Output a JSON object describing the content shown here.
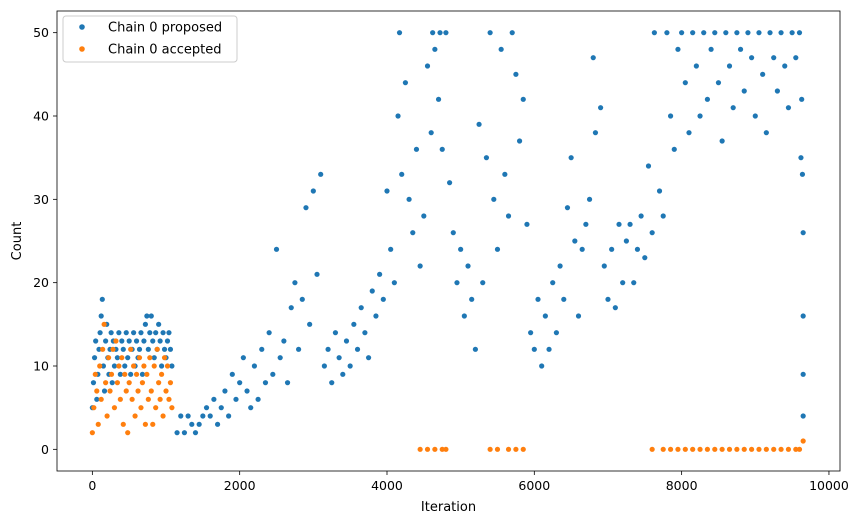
{
  "chart_data": {
    "type": "scatter",
    "title": "",
    "xlabel": "Iteration",
    "ylabel": "Count",
    "xlim": [
      -480,
      10150
    ],
    "ylim": [
      -2.6,
      52.6
    ],
    "xticks": [
      0,
      2000,
      4000,
      6000,
      8000,
      10000
    ],
    "yticks": [
      0,
      10,
      20,
      30,
      40,
      50
    ],
    "grid": false,
    "legend": {
      "placement": "top-left"
    },
    "series": [
      {
        "name": "Chain 0 proposed",
        "color": "#1f77b4",
        "points": [
          [
            0,
            5
          ],
          [
            15,
            8
          ],
          [
            30,
            11
          ],
          [
            45,
            13
          ],
          [
            60,
            6
          ],
          [
            75,
            9
          ],
          [
            90,
            12
          ],
          [
            105,
            14
          ],
          [
            120,
            16
          ],
          [
            135,
            18
          ],
          [
            150,
            10
          ],
          [
            165,
            7
          ],
          [
            180,
            13
          ],
          [
            195,
            15
          ],
          [
            210,
            11
          ],
          [
            225,
            9
          ],
          [
            240,
            12
          ],
          [
            255,
            14
          ],
          [
            270,
            8
          ],
          [
            285,
            13
          ],
          [
            300,
            10
          ],
          [
            320,
            12
          ],
          [
            340,
            11
          ],
          [
            360,
            14
          ],
          [
            380,
            9
          ],
          [
            400,
            13
          ],
          [
            420,
            12
          ],
          [
            440,
            10
          ],
          [
            460,
            14
          ],
          [
            480,
            11
          ],
          [
            500,
            13
          ],
          [
            520,
            9
          ],
          [
            540,
            12
          ],
          [
            560,
            14
          ],
          [
            580,
            10
          ],
          [
            600,
            13
          ],
          [
            620,
            11
          ],
          [
            640,
            12
          ],
          [
            660,
            14
          ],
          [
            680,
            9
          ],
          [
            700,
            13
          ],
          [
            720,
            15
          ],
          [
            740,
            16
          ],
          [
            760,
            12
          ],
          [
            780,
            14
          ],
          [
            800,
            16
          ],
          [
            820,
            13
          ],
          [
            840,
            11
          ],
          [
            860,
            14
          ],
          [
            880,
            12
          ],
          [
            900,
            15
          ],
          [
            920,
            13
          ],
          [
            940,
            10
          ],
          [
            960,
            14
          ],
          [
            980,
            12
          ],
          [
            1000,
            11
          ],
          [
            1020,
            13
          ],
          [
            1040,
            14
          ],
          [
            1060,
            12
          ],
          [
            1080,
            10
          ],
          [
            1150,
            2
          ],
          [
            1200,
            4
          ],
          [
            1250,
            2
          ],
          [
            1300,
            4
          ],
          [
            1350,
            3
          ],
          [
            1400,
            2
          ],
          [
            1450,
            3
          ],
          [
            1500,
            4
          ],
          [
            1550,
            5
          ],
          [
            1600,
            4
          ],
          [
            1650,
            6
          ],
          [
            1700,
            3
          ],
          [
            1750,
            5
          ],
          [
            1800,
            7
          ],
          [
            1850,
            4
          ],
          [
            1900,
            9
          ],
          [
            1950,
            6
          ],
          [
            2000,
            8
          ],
          [
            2050,
            11
          ],
          [
            2100,
            7
          ],
          [
            2150,
            5
          ],
          [
            2200,
            10
          ],
          [
            2250,
            6
          ],
          [
            2300,
            12
          ],
          [
            2350,
            8
          ],
          [
            2400,
            14
          ],
          [
            2450,
            9
          ],
          [
            2500,
            24
          ],
          [
            2550,
            11
          ],
          [
            2600,
            13
          ],
          [
            2650,
            8
          ],
          [
            2700,
            17
          ],
          [
            2750,
            20
          ],
          [
            2800,
            12
          ],
          [
            2850,
            18
          ],
          [
            2900,
            29
          ],
          [
            2950,
            15
          ],
          [
            3000,
            31
          ],
          [
            3050,
            21
          ],
          [
            3100,
            33
          ],
          [
            3150,
            10
          ],
          [
            3200,
            12
          ],
          [
            3250,
            8
          ],
          [
            3300,
            14
          ],
          [
            3350,
            11
          ],
          [
            3400,
            9
          ],
          [
            3450,
            13
          ],
          [
            3500,
            10
          ],
          [
            3550,
            15
          ],
          [
            3600,
            12
          ],
          [
            3650,
            17
          ],
          [
            3700,
            14
          ],
          [
            3750,
            11
          ],
          [
            3800,
            19
          ],
          [
            3850,
            16
          ],
          [
            3900,
            21
          ],
          [
            3950,
            18
          ],
          [
            4000,
            31
          ],
          [
            4050,
            24
          ],
          [
            4100,
            20
          ],
          [
            4150,
            40
          ],
          [
            4170,
            50
          ],
          [
            4200,
            33
          ],
          [
            4250,
            44
          ],
          [
            4300,
            30
          ],
          [
            4350,
            26
          ],
          [
            4400,
            36
          ],
          [
            4450,
            22
          ],
          [
            4500,
            28
          ],
          [
            4550,
            46
          ],
          [
            4600,
            38
          ],
          [
            4620,
            50
          ],
          [
            4650,
            48
          ],
          [
            4700,
            42
          ],
          [
            4720,
            50
          ],
          [
            4750,
            36
          ],
          [
            4800,
            50
          ],
          [
            4850,
            32
          ],
          [
            4900,
            26
          ],
          [
            4950,
            20
          ],
          [
            5000,
            24
          ],
          [
            5050,
            16
          ],
          [
            5100,
            22
          ],
          [
            5150,
            18
          ],
          [
            5200,
            12
          ],
          [
            5250,
            39
          ],
          [
            5300,
            20
          ],
          [
            5350,
            35
          ],
          [
            5400,
            50
          ],
          [
            5450,
            30
          ],
          [
            5500,
            24
          ],
          [
            5550,
            48
          ],
          [
            5600,
            33
          ],
          [
            5650,
            28
          ],
          [
            5700,
            50
          ],
          [
            5750,
            45
          ],
          [
            5800,
            37
          ],
          [
            5850,
            42
          ],
          [
            5900,
            27
          ],
          [
            5950,
            14
          ],
          [
            6000,
            12
          ],
          [
            6050,
            18
          ],
          [
            6100,
            10
          ],
          [
            6150,
            16
          ],
          [
            6200,
            12
          ],
          [
            6250,
            20
          ],
          [
            6300,
            14
          ],
          [
            6350,
            22
          ],
          [
            6400,
            18
          ],
          [
            6450,
            29
          ],
          [
            6500,
            35
          ],
          [
            6550,
            25
          ],
          [
            6600,
            16
          ],
          [
            6650,
            24
          ],
          [
            6700,
            27
          ],
          [
            6750,
            30
          ],
          [
            6800,
            47
          ],
          [
            6830,
            38
          ],
          [
            6900,
            41
          ],
          [
            6950,
            22
          ],
          [
            7000,
            18
          ],
          [
            7050,
            24
          ],
          [
            7100,
            17
          ],
          [
            7150,
            27
          ],
          [
            7200,
            20
          ],
          [
            7250,
            25
          ],
          [
            7300,
            27
          ],
          [
            7350,
            20
          ],
          [
            7400,
            24
          ],
          [
            7450,
            28
          ],
          [
            7500,
            23
          ],
          [
            7550,
            34
          ],
          [
            7600,
            26
          ],
          [
            7630,
            50
          ],
          [
            7700,
            31
          ],
          [
            7750,
            28
          ],
          [
            7800,
            50
          ],
          [
            7850,
            40
          ],
          [
            7900,
            36
          ],
          [
            7950,
            48
          ],
          [
            8000,
            50
          ],
          [
            8050,
            44
          ],
          [
            8100,
            38
          ],
          [
            8150,
            50
          ],
          [
            8200,
            46
          ],
          [
            8250,
            40
          ],
          [
            8300,
            50
          ],
          [
            8350,
            42
          ],
          [
            8400,
            48
          ],
          [
            8450,
            50
          ],
          [
            8500,
            44
          ],
          [
            8550,
            37
          ],
          [
            8600,
            50
          ],
          [
            8650,
            46
          ],
          [
            8700,
            41
          ],
          [
            8750,
            50
          ],
          [
            8800,
            48
          ],
          [
            8850,
            43
          ],
          [
            8900,
            50
          ],
          [
            8950,
            47
          ],
          [
            9000,
            40
          ],
          [
            9050,
            50
          ],
          [
            9100,
            45
          ],
          [
            9150,
            38
          ],
          [
            9200,
            50
          ],
          [
            9250,
            47
          ],
          [
            9300,
            43
          ],
          [
            9350,
            50
          ],
          [
            9400,
            46
          ],
          [
            9450,
            41
          ],
          [
            9500,
            50
          ],
          [
            9550,
            47
          ],
          [
            9600,
            50
          ],
          [
            9620,
            35
          ],
          [
            9630,
            42
          ],
          [
            9640,
            33
          ],
          [
            9650,
            26
          ],
          [
            9650,
            16
          ],
          [
            9650,
            9
          ],
          [
            9650,
            4
          ]
        ]
      },
      {
        "name": "Chain 0 accepted",
        "color": "#ff7f0e",
        "points": [
          [
            0,
            2
          ],
          [
            20,
            5
          ],
          [
            40,
            9
          ],
          [
            60,
            7
          ],
          [
            80,
            3
          ],
          [
            100,
            10
          ],
          [
            120,
            6
          ],
          [
            140,
            12
          ],
          [
            160,
            15
          ],
          [
            180,
            8
          ],
          [
            200,
            4
          ],
          [
            220,
            11
          ],
          [
            240,
            7
          ],
          [
            260,
            9
          ],
          [
            280,
            12
          ],
          [
            300,
            5
          ],
          [
            320,
            13
          ],
          [
            340,
            8
          ],
          [
            360,
            10
          ],
          [
            380,
            6
          ],
          [
            400,
            11
          ],
          [
            420,
            3
          ],
          [
            440,
            9
          ],
          [
            460,
            7
          ],
          [
            480,
            2
          ],
          [
            500,
            8
          ],
          [
            520,
            12
          ],
          [
            540,
            6
          ],
          [
            560,
            10
          ],
          [
            580,
            4
          ],
          [
            600,
            9
          ],
          [
            620,
            7
          ],
          [
            640,
            11
          ],
          [
            660,
            5
          ],
          [
            680,
            8
          ],
          [
            700,
            10
          ],
          [
            720,
            3
          ],
          [
            740,
            9
          ],
          [
            760,
            6
          ],
          [
            780,
            11
          ],
          [
            800,
            7
          ],
          [
            820,
            3
          ],
          [
            840,
            10
          ],
          [
            860,
            5
          ],
          [
            880,
            12
          ],
          [
            900,
            8
          ],
          [
            920,
            6
          ],
          [
            940,
            9
          ],
          [
            960,
            4
          ],
          [
            980,
            11
          ],
          [
            1000,
            7
          ],
          [
            1020,
            10
          ],
          [
            1040,
            6
          ],
          [
            1060,
            8
          ],
          [
            1080,
            5
          ],
          [
            4450,
            0
          ],
          [
            4550,
            0
          ],
          [
            4650,
            0
          ],
          [
            4750,
            0
          ],
          [
            4800,
            0
          ],
          [
            5400,
            0
          ],
          [
            5500,
            0
          ],
          [
            5650,
            0
          ],
          [
            5750,
            0
          ],
          [
            5850,
            0
          ],
          [
            7600,
            0
          ],
          [
            7750,
            0
          ],
          [
            7850,
            0
          ],
          [
            7950,
            0
          ],
          [
            8050,
            0
          ],
          [
            8150,
            0
          ],
          [
            8250,
            0
          ],
          [
            8350,
            0
          ],
          [
            8450,
            0
          ],
          [
            8550,
            0
          ],
          [
            8650,
            0
          ],
          [
            8750,
            0
          ],
          [
            8850,
            0
          ],
          [
            8950,
            0
          ],
          [
            9050,
            0
          ],
          [
            9150,
            0
          ],
          [
            9250,
            0
          ],
          [
            9350,
            0
          ],
          [
            9450,
            0
          ],
          [
            9550,
            0
          ],
          [
            9600,
            0
          ],
          [
            9650,
            1
          ]
        ]
      }
    ]
  }
}
